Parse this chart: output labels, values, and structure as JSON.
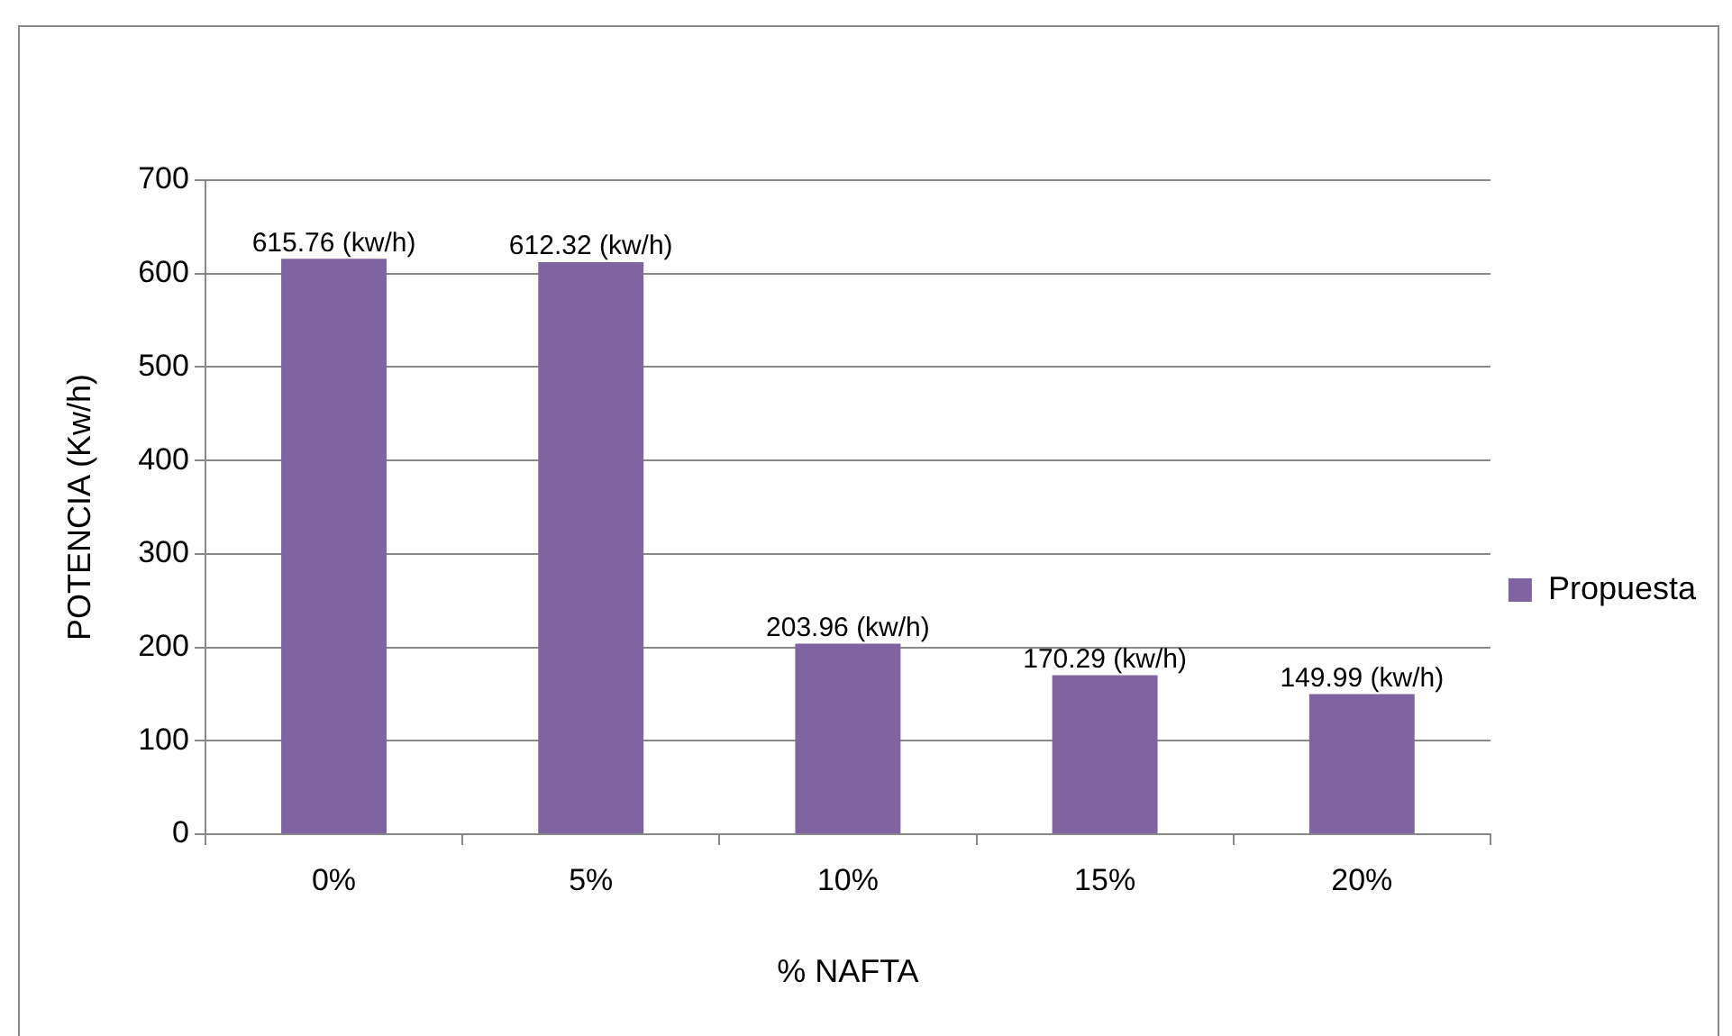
{
  "chart_data": {
    "type": "bar",
    "xlabel": "% NAFTA",
    "ylabel": "POTENCIA (Kw/h)",
    "categories": [
      "0%",
      "5%",
      "10%",
      "15%",
      "20%"
    ],
    "series": [
      {
        "name": "Propuesta",
        "color": "#8064a2",
        "values": [
          615.76,
          612.32,
          203.96,
          170.29,
          149.99
        ],
        "value_labels": [
          "615.76 (kw/h)",
          "612.32 (kw/h)",
          "203.96 (kw/h)",
          "170.29 (kw/h)",
          "149.99 (kw/h)"
        ]
      }
    ],
    "ylim": [
      0,
      700
    ],
    "yticks": [
      0,
      100,
      200,
      300,
      400,
      500,
      600,
      700
    ],
    "grid": "y",
    "legend": "right"
  }
}
